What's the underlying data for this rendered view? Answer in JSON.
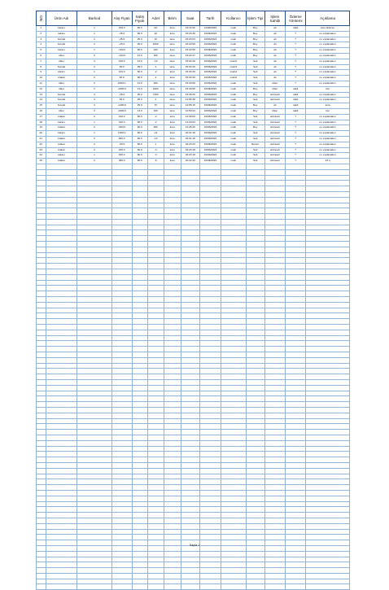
{
  "headers": [
    "NO",
    "Ürün Adı",
    "Barkod",
    "Alış Fiyatı",
    "Satış Fiyatı",
    "Adet",
    "Birim",
    "Saat",
    "Tarih",
    "Kullanıcı",
    "İşlem Tipi",
    "İşlem Sahibi",
    "Ödeme Yöntemi",
    "Açıklama"
  ],
  "rows": [
    [
      "1",
      "karam",
      "1",
      "100.0",
      "60.0",
      "20",
      "kutu",
      "15:11:50",
      "11/06/2024",
      "main",
      "Buy",
      "ali",
      "nakit",
      "kutu bideren"
    ],
    [
      "2",
      "karam",
      "1",
      "-25.0",
      "60.0",
      "10",
      "kutu",
      "15:23:36",
      "10/06/2024",
      "main",
      "Buy",
      "ali",
      "?",
      "no explanation"
    ],
    [
      "3",
      "burçak",
      "4",
      "-25.0",
      "25.0",
      "10",
      "tane",
      "15:23:03",
      "10/06/2024",
      "main",
      "Buy",
      "ali",
      "?",
      "no explanation"
    ],
    [
      "4",
      "burçak",
      "4",
      "-25.0",
      "25.0",
      "1000",
      "tane",
      "15:22:59",
      "10/06/2024",
      "main",
      "Buy",
      "ali",
      "?",
      "no explanation"
    ],
    [
      "5",
      "karam",
      "1",
      "-120.0",
      "60.0",
      "100",
      "kutu",
      "15:22:55",
      "10/06/2024",
      "main",
      "Buy",
      "ali",
      "?",
      "no explanation"
    ],
    [
      "6",
      "ülker",
      "3",
      "-120.0",
      "13.0",
      "100",
      "tane",
      "15:22:47",
      "10/06/2024",
      "main",
      "Buy",
      "ali",
      "?",
      "no explanation"
    ],
    [
      "7",
      "ülker",
      "3",
      "120.0",
      "13.0",
      "-10",
      "tane",
      "15:04:29",
      "10/06/2024",
      "main2",
      "Sell",
      "ali",
      "?",
      "no explanation"
    ],
    [
      "8",
      "burçak",
      "4",
      "25.0",
      "25.0",
      "-1",
      "tane",
      "15:04:29",
      "10/06/2024",
      "main2",
      "Sell",
      "ali",
      "?",
      "no explanation"
    ],
    [
      "9",
      "karam",
      "1",
      "120.0",
      "60.0",
      "-2",
      "kutu",
      "15:04:29",
      "10/06/2024",
      "main2",
      "Sell",
      "ali",
      "?",
      "no explanation"
    ],
    [
      "10",
      "krakar",
      "2",
      "60.0",
      "60.0",
      "-1",
      "kutu",
      "15:04:29",
      "10/06/2024",
      "main2",
      "Sell",
      "ali",
      "?",
      "no explanation"
    ],
    [
      "11",
      "ülker",
      "3",
      "2400.0",
      "13.0",
      "200",
      "tane",
      "15:40:59",
      "10/06/2024",
      "main",
      "Sell",
      "ülker",
      "?",
      "no explanation"
    ],
    [
      "12",
      "ülker",
      "3",
      "-1000.0",
      "13.0",
      "1000",
      "tane",
      "15:40:55",
      "10/06/2024",
      "main",
      "Buy",
      "ülker",
      "nakit",
      "kar"
    ],
    [
      "13",
      "burçak",
      "4",
      "-25.0",
      "25.0",
      "7100",
      "tane",
      "15:36:26",
      "10/06/2024",
      "main",
      "Buy",
      "unknown",
      "nakit",
      "no explanation"
    ],
    [
      "14",
      "burçak",
      "4",
      "25.0",
      "25.0",
      "-1",
      "tane",
      "14:55:38",
      "10/06/2024",
      "main",
      "Sell",
      "unknown",
      "nakit",
      "no explanation"
    ],
    [
      "15",
      "burçak",
      "4",
      "-1400.0",
      "25.0",
      "70",
      "tane",
      "14:55:15",
      "10/06/2024",
      "main",
      "Buy",
      "ali",
      "nakit",
      "ama"
    ],
    [
      "16",
      "ülker",
      "3",
      "-1000.0",
      "13.0",
      "100",
      "tane",
      "14:50:24",
      "10/06/2024",
      "main",
      "Buy",
      "ülker",
      "nakit",
      "kar"
    ],
    [
      "17",
      "krakar",
      "2",
      "120.0",
      "60.0",
      "-2",
      "kutu",
      "14:29:03",
      "10/06/2024",
      "main",
      "Sell",
      "unknown",
      "?",
      "no explanation"
    ],
    [
      "18",
      "karam",
      "1",
      "120.0",
      "60.0",
      "-2",
      "kutu",
      "14:29:03",
      "10/06/2024",
      "main",
      "Sell",
      "unknown",
      "?",
      "no explanation"
    ],
    [
      "19",
      "krakar",
      "2",
      "-800.0",
      "60.0",
      "300",
      "kutu",
      "14:28:16",
      "10/06/2024",
      "main",
      "Buy",
      "unknown",
      "?",
      "no explanation"
    ],
    [
      "20",
      "karam",
      "1",
      "1260.0",
      "60.0",
      "-21",
      "kutu",
      "04:31:18",
      "10/06/2024",
      "main",
      "Sell",
      "unknown",
      "?",
      "no explanation"
    ],
    [
      "21",
      "krakar",
      "2",
      "600.0",
      "60.0",
      "-10",
      "kutu",
      "04:31:18",
      "10/06/2024",
      "main",
      "Sell",
      "unknown",
      "?",
      "no explanation"
    ],
    [
      "22",
      "krakar",
      "2",
      "-60.0",
      "60.0",
      "1",
      "kutu",
      "04:23:23",
      "10/06/2024",
      "main",
      "Return",
      "unknown",
      "?",
      "no explanation"
    ],
    [
      "23",
      "krakar",
      "2",
      "180.0",
      "60.0",
      "-3",
      "kutu",
      "04:23:18",
      "10/06/2024",
      "main",
      "Sell",
      "unknown",
      "?",
      "no explanation"
    ],
    [
      "24",
      "karam",
      "1",
      "180.0",
      "60.0",
      "-3",
      "kutu",
      "04:23:18",
      "10/06/2024",
      "main",
      "Sell",
      "unknown",
      "?",
      "no explanation"
    ],
    [
      "25",
      "krakar",
      "2",
      "360.0",
      "60.0",
      "-6",
      "kutu",
      "04:22:40",
      "10/06/2024",
      "main",
      "Sell",
      "unknown",
      "?",
      "23 ö"
    ]
  ],
  "empty_row_count": 77,
  "footer": "Sayfa 1"
}
